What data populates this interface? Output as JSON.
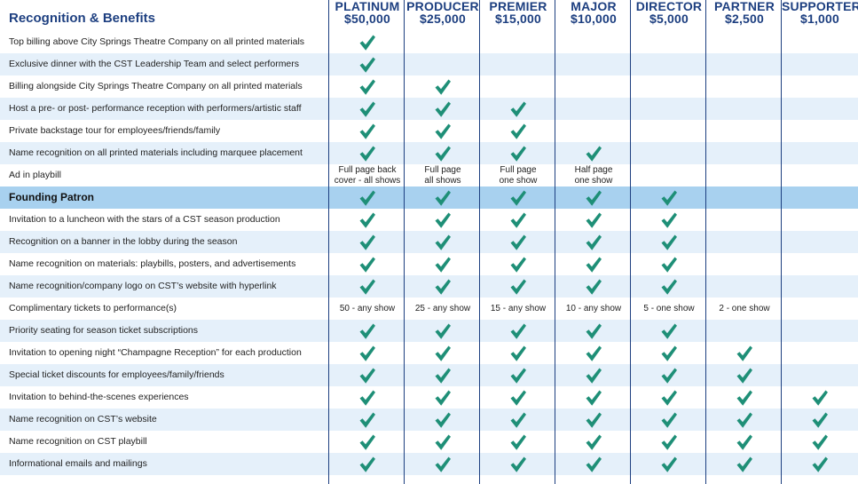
{
  "table": {
    "title": "Recognition & Benefits",
    "check_color": "#1e8f77",
    "header_color": "#1d3f80",
    "tiers": [
      {
        "name": "PLATINUM",
        "amount": "$50,000"
      },
      {
        "name": "PRODUCER",
        "amount": "$25,000"
      },
      {
        "name": "PREMIER",
        "amount": "$15,000"
      },
      {
        "name": "MAJOR",
        "amount": "$10,000"
      },
      {
        "name": "DIRECTOR",
        "amount": "$5,000"
      },
      {
        "name": "PARTNER",
        "amount": "$2,500"
      },
      {
        "name": "SUPPORTER",
        "amount": "$1,000"
      }
    ],
    "rows": [
      {
        "label": "Top billing above City Springs Theatre Company on all printed materials",
        "cells": [
          "check",
          "",
          "",
          "",
          "",
          "",
          ""
        ]
      },
      {
        "label": "Exclusive dinner with the CST Leadership Team and select performers",
        "cells": [
          "check",
          "",
          "",
          "",
          "",
          "",
          ""
        ]
      },
      {
        "label": "Billing alongside City Springs Theatre Company on all printed materials",
        "cells": [
          "check",
          "check",
          "",
          "",
          "",
          "",
          ""
        ]
      },
      {
        "label": "Host a pre- or post- performance reception with performers/artistic staff",
        "cells": [
          "check",
          "check",
          "check",
          "",
          "",
          "",
          ""
        ]
      },
      {
        "label": "Private backstage tour for employees/friends/family",
        "cells": [
          "check",
          "check",
          "check",
          "",
          "",
          "",
          ""
        ]
      },
      {
        "label": "Name recognition on all printed materials including marquee placement",
        "cells": [
          "check",
          "check",
          "check",
          "check",
          "",
          "",
          ""
        ]
      },
      {
        "label": "Ad in playbill",
        "cells": [
          [
            "Full page back",
            "cover - all shows"
          ],
          [
            "Full page",
            "all shows"
          ],
          [
            "Full page",
            "one show"
          ],
          [
            "Half page",
            "one show"
          ],
          "",
          "",
          ""
        ]
      },
      {
        "label": "Founding Patron",
        "founding": true,
        "cells": [
          "check",
          "check",
          "check",
          "check",
          "check",
          "",
          ""
        ]
      },
      {
        "label": "Invitation to a luncheon with the stars of a CST season production",
        "cells": [
          "check",
          "check",
          "check",
          "check",
          "check",
          "",
          ""
        ]
      },
      {
        "label": "Recognition on a banner in the lobby during the season",
        "cells": [
          "check",
          "check",
          "check",
          "check",
          "check",
          "",
          ""
        ]
      },
      {
        "label": "Name recognition on materials: playbills, posters, and advertisements",
        "cells": [
          "check",
          "check",
          "check",
          "check",
          "check",
          "",
          ""
        ]
      },
      {
        "label": "Name recognition/company logo on CST’s website with hyperlink",
        "cells": [
          "check",
          "check",
          "check",
          "check",
          "check",
          "",
          ""
        ]
      },
      {
        "label": "Complimentary tickets to performance(s)",
        "cells": [
          "50 - any show",
          "25 - any show",
          "15 - any show",
          "10 - any show",
          "5 - one show",
          "2 - one show",
          ""
        ]
      },
      {
        "label": "Priority seating for season ticket subscriptions",
        "cells": [
          "check",
          "check",
          "check",
          "check",
          "check",
          "",
          ""
        ]
      },
      {
        "label": "Invitation to opening night “Champagne Reception” for each production",
        "cells": [
          "check",
          "check",
          "check",
          "check",
          "check",
          "check",
          ""
        ]
      },
      {
        "label": "Special ticket discounts for employees/family/friends",
        "cells": [
          "check",
          "check",
          "check",
          "check",
          "check",
          "check",
          ""
        ]
      },
      {
        "label": "Invitation to behind-the-scenes experiences",
        "cells": [
          "check",
          "check",
          "check",
          "check",
          "check",
          "check",
          "check"
        ]
      },
      {
        "label": "Name recognition on CST’s website",
        "cells": [
          "check",
          "check",
          "check",
          "check",
          "check",
          "check",
          "check"
        ]
      },
      {
        "label": "Name recognition on CST playbill",
        "cells": [
          "check",
          "check",
          "check",
          "check",
          "check",
          "check",
          "check"
        ]
      },
      {
        "label": "Informational emails and mailings",
        "cells": [
          "check",
          "check",
          "check",
          "check",
          "check",
          "check",
          "check"
        ]
      }
    ]
  }
}
